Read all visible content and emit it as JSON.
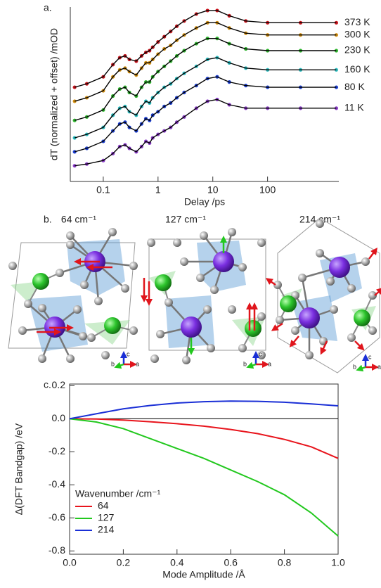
{
  "chart_data": [
    {
      "type": "line",
      "panel_label": "a.",
      "xlabel": "Delay /ps",
      "ylabel": "dT (normalized + offset) /mOD",
      "xscale": "log",
      "xlim": [
        0.025,
        2000
      ],
      "ylim": [
        0,
        10
      ],
      "xticks": [
        0.1,
        1,
        10,
        100
      ],
      "markers": true,
      "fit_color": "#000000",
      "x": [
        0.03,
        0.05,
        0.1,
        0.15,
        0.2,
        0.25,
        0.3,
        0.4,
        0.5,
        0.6,
        0.7,
        0.8,
        1,
        1.3,
        1.7,
        2.2,
        3,
        5,
        8,
        12,
        20,
        40,
        100,
        400,
        1800
      ],
      "series": [
        {
          "name": "373 K",
          "color": "#c8161e",
          "values": [
            5.4,
            5.6,
            6.0,
            6.7,
            7.1,
            7.2,
            7.0,
            6.9,
            7.2,
            7.4,
            7.5,
            7.7,
            8.0,
            8.3,
            8.6,
            8.9,
            9.2,
            9.6,
            9.8,
            9.8,
            9.5,
            9.2,
            9.1,
            9.1,
            9.1
          ]
        },
        {
          "name": "300 K",
          "color": "#d28f12",
          "values": [
            4.6,
            4.8,
            5.2,
            6.0,
            6.4,
            6.5,
            6.3,
            6.1,
            6.5,
            6.8,
            6.8,
            7.0,
            7.3,
            7.6,
            7.8,
            8.1,
            8.4,
            8.8,
            9.1,
            9.1,
            8.8,
            8.5,
            8.4,
            8.4,
            8.4
          ]
        },
        {
          "name": "230 K",
          "color": "#2fb52f",
          "values": [
            3.5,
            3.7,
            4.1,
            4.9,
            5.3,
            5.4,
            5.1,
            4.9,
            5.4,
            5.7,
            5.7,
            6.0,
            6.3,
            6.6,
            6.9,
            7.2,
            7.5,
            7.9,
            8.2,
            8.2,
            7.9,
            7.6,
            7.5,
            7.5,
            7.5
          ]
        },
        {
          "name": "160 K",
          "color": "#2bbcbf",
          "values": [
            2.5,
            2.7,
            3.1,
            3.8,
            4.2,
            4.3,
            4.0,
            3.8,
            4.3,
            4.6,
            4.5,
            4.8,
            5.1,
            5.4,
            5.6,
            5.9,
            6.2,
            6.6,
            7.0,
            7.1,
            6.8,
            6.5,
            6.4,
            6.4,
            6.4
          ]
        },
        {
          "name": "80 K",
          "color": "#1c3fd2",
          "values": [
            1.7,
            1.9,
            2.3,
            2.9,
            3.3,
            3.4,
            3.1,
            2.9,
            3.3,
            3.6,
            3.5,
            3.8,
            4.0,
            4.3,
            4.5,
            4.8,
            5.1,
            5.5,
            5.9,
            6.0,
            5.7,
            5.5,
            5.4,
            5.4,
            5.4
          ]
        },
        {
          "name": "11 K",
          "color": "#8b3cc9",
          "values": [
            0.9,
            1.0,
            1.2,
            1.6,
            2.0,
            2.1,
            1.9,
            1.7,
            2.0,
            2.3,
            2.2,
            2.5,
            2.7,
            2.9,
            3.1,
            3.4,
            3.7,
            4.2,
            4.6,
            4.7,
            4.4,
            4.2,
            4.2,
            4.2,
            4.2
          ]
        }
      ]
    },
    {
      "type": "line",
      "panel_label": "c.",
      "xlabel": "Mode Amplitude /Å",
      "ylabel": "Δ(DFT Bandgap) /eV",
      "xlim": [
        0,
        1
      ],
      "ylim": [
        -0.82,
        0.21
      ],
      "xticks": [
        {
          "value": 0,
          "label": "0.0"
        },
        0.2,
        0.4,
        0.6,
        0.8,
        {
          "value": 1,
          "label": "1.0"
        }
      ],
      "yticks": [
        -0.8,
        -0.6,
        -0.4,
        -0.2,
        {
          "value": 0,
          "label": "0.0"
        },
        0.2
      ],
      "zero_line": true,
      "legend": "lower left",
      "legend_title": "Wavenumber /cm⁻¹",
      "x": [
        0,
        0.1,
        0.2,
        0.3,
        0.4,
        0.5,
        0.6,
        0.7,
        0.8,
        0.9,
        1
      ],
      "series": [
        {
          "name": "64",
          "color": "#e8141c",
          "values": [
            0,
            -0.002,
            -0.008,
            -0.018,
            -0.03,
            -0.045,
            -0.065,
            -0.09,
            -0.125,
            -0.17,
            -0.24
          ]
        },
        {
          "name": "127",
          "color": "#22c81e",
          "values": [
            0,
            -0.02,
            -0.06,
            -0.12,
            -0.18,
            -0.24,
            -0.31,
            -0.38,
            -0.46,
            -0.57,
            -0.71
          ]
        },
        {
          "name": "214",
          "color": "#1a2fd6",
          "values": [
            0,
            0.03,
            0.06,
            0.08,
            0.095,
            0.103,
            0.107,
            0.105,
            0.1,
            0.09,
            0.078
          ]
        }
      ]
    }
  ],
  "diagram": {
    "panel_label": "b.",
    "modes": [
      "64 cm⁻¹",
      "127 cm⁻¹",
      "214 cm⁻¹"
    ],
    "axis_labels": {
      "a": "a",
      "b": "b",
      "c": "c"
    }
  }
}
